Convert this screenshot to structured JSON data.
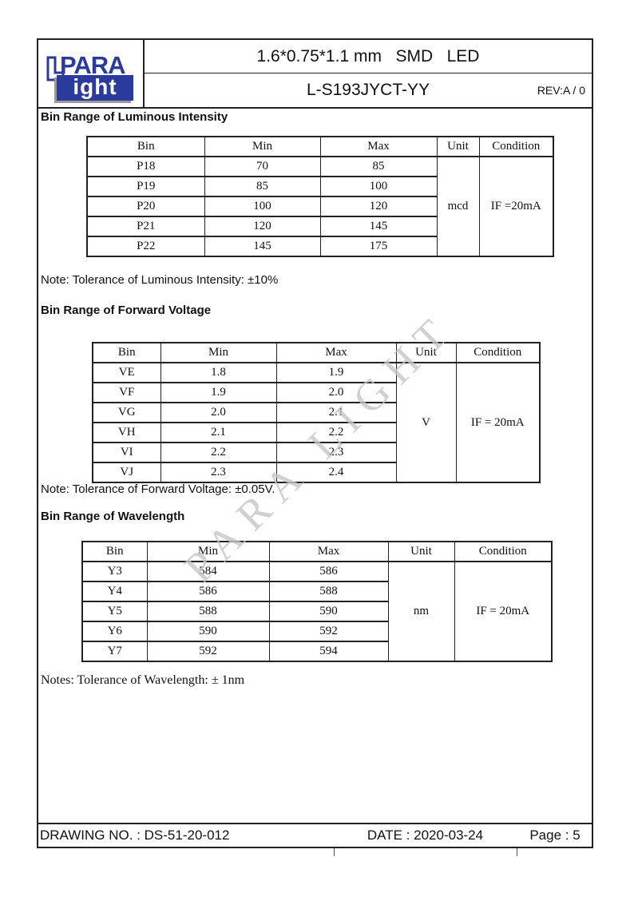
{
  "header": {
    "logo_top": "PARA",
    "logo_bottom": "ight",
    "product_title": "1.6*0.75*1.1 mm   SMD   LED",
    "part_number": "L-S193JYCT-YY",
    "revision": "REV:A / 0"
  },
  "watermark_text": "PARA LIGHT",
  "sections": [
    {
      "heading": "Bin Range of Luminous Intensity",
      "table": {
        "headers": [
          "Bin",
          "Min",
          "Max",
          "Unit",
          "Condition"
        ],
        "rows": [
          [
            "P18",
            "70",
            "85"
          ],
          [
            "P19",
            "85",
            "100"
          ],
          [
            "P20",
            "100",
            "120"
          ],
          [
            "P21",
            "120",
            "145"
          ],
          [
            "P22",
            "145",
            "175"
          ]
        ],
        "unit": "mcd",
        "condition": "IF =20mA"
      },
      "note": "Note: Tolerance of Luminous Intensity: ±10%"
    },
    {
      "heading": "Bin Range of Forward Voltage",
      "table": {
        "headers": [
          "Bin",
          "Min",
          "Max",
          "Unit",
          "Condition"
        ],
        "rows": [
          [
            "VE",
            "1.8",
            "1.9"
          ],
          [
            "VF",
            "1.9",
            "2.0"
          ],
          [
            "VG",
            "2.0",
            "2.1"
          ],
          [
            "VH",
            "2.1",
            "2.2"
          ],
          [
            "VI",
            "2.2",
            "2.3"
          ],
          [
            "VJ",
            "2.3",
            "2.4"
          ]
        ],
        "unit": "V",
        "condition": "IF = 20mA"
      },
      "note": "Note: Tolerance of Forward Voltage: ±0.05V."
    },
    {
      "heading": "Bin Range of Wavelength",
      "table": {
        "headers": [
          "Bin",
          "Min",
          "Max",
          "Unit",
          "Condition"
        ],
        "rows": [
          [
            "Y3",
            "584",
            "586"
          ],
          [
            "Y4",
            "586",
            "588"
          ],
          [
            "Y5",
            "588",
            "590"
          ],
          [
            "Y6",
            "590",
            "592"
          ],
          [
            "Y7",
            "592",
            "594"
          ]
        ],
        "unit": "nm",
        "condition": "IF = 20mA"
      },
      "note": "Notes: Tolerance of Wavelength: ± 1nm"
    }
  ],
  "footer": {
    "drawing_no": "DRAWING NO. : DS-51-20-012",
    "date": "DATE : 2020-03-24",
    "page": "Page : 5"
  },
  "colors": {
    "logo_blue": "#2b3a9d",
    "watermark_gray": "#c6c6c6"
  }
}
